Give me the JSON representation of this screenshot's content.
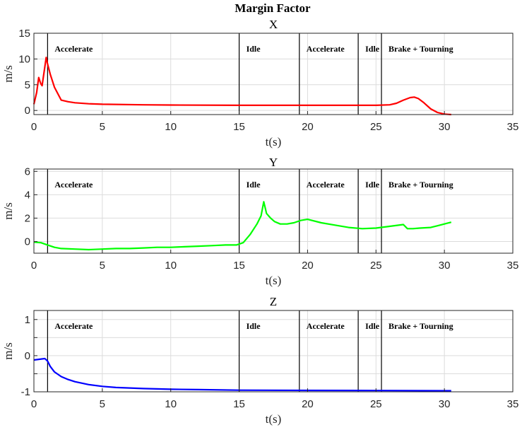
{
  "figure_title": "Margin Factor",
  "chart_data": [
    {
      "type": "line",
      "title": "X",
      "xlabel": "t(s)",
      "ylabel": "m/s",
      "xlim": [
        0,
        35
      ],
      "ylim": [
        -0.8,
        15
      ],
      "xticks": [
        0,
        5,
        10,
        15,
        20,
        25,
        30,
        35
      ],
      "yticks": [
        0,
        5,
        10,
        15
      ],
      "grid": true,
      "phase_boundaries": [
        1,
        15,
        19.4,
        23.7,
        25.4
      ],
      "phase_labels": [
        {
          "label": "Accelerate",
          "start": 1
        },
        {
          "label": "Idle",
          "start": 15
        },
        {
          "label": "Accelerate",
          "start": 19.4
        },
        {
          "label": "Idle",
          "start": 23.7
        },
        {
          "label": "Brake + Tourning",
          "start": 25.4
        }
      ],
      "series": [
        {
          "color": "#ff0000",
          "x": [
            0,
            0.2,
            0.35,
            0.5,
            0.6,
            0.8,
            0.9,
            1.0,
            1.2,
            1.5,
            2.0,
            2.5,
            3.0,
            4,
            5,
            8,
            10,
            15,
            20,
            25,
            26,
            26.5,
            27,
            27.5,
            27.8,
            28.1,
            28.5,
            29,
            29.5,
            30,
            30.5
          ],
          "y": [
            1.2,
            3.5,
            6.4,
            5.2,
            4.8,
            8.5,
            10.3,
            9.0,
            7.0,
            4.5,
            2.0,
            1.7,
            1.5,
            1.3,
            1.2,
            1.1,
            1.05,
            1.0,
            1.0,
            1.0,
            1.1,
            1.4,
            2.0,
            2.5,
            2.6,
            2.3,
            1.5,
            0.3,
            -0.4,
            -0.7,
            -0.8
          ]
        }
      ]
    },
    {
      "type": "line",
      "title": "Y",
      "xlabel": "t(s)",
      "ylabel": "m/s",
      "xlim": [
        0,
        35
      ],
      "ylim": [
        -1,
        6.2
      ],
      "xticks": [
        0,
        5,
        10,
        15,
        20,
        25,
        30,
        35
      ],
      "yticks": [
        0,
        2,
        4,
        6
      ],
      "grid": true,
      "phase_boundaries": [
        1,
        15,
        19.4,
        23.7,
        25.4
      ],
      "phase_labels": [
        {
          "label": "Accelerate",
          "start": 1
        },
        {
          "label": "Idle",
          "start": 15
        },
        {
          "label": "Accelerate",
          "start": 19.4
        },
        {
          "label": "Idle",
          "start": 23.7
        },
        {
          "label": "Brake + Tourning",
          "start": 25.4
        }
      ],
      "series": [
        {
          "color": "#00ff00",
          "x": [
            0,
            0.5,
            1.0,
            1.5,
            2,
            3,
            4,
            5,
            6,
            7,
            8,
            9,
            10,
            11,
            12,
            13,
            14,
            14.8,
            15.3,
            15.8,
            16.3,
            16.6,
            16.8,
            17.0,
            17.3,
            17.6,
            18.0,
            18.5,
            19,
            19.5,
            20,
            21,
            22,
            23,
            24,
            25,
            26,
            27,
            27.3,
            27.7,
            28.2,
            29,
            29.5,
            30,
            30.5
          ],
          "y": [
            -0.05,
            -0.1,
            -0.3,
            -0.5,
            -0.6,
            -0.65,
            -0.7,
            -0.65,
            -0.6,
            -0.6,
            -0.55,
            -0.5,
            -0.5,
            -0.45,
            -0.4,
            -0.35,
            -0.3,
            -0.3,
            -0.1,
            0.6,
            1.5,
            2.2,
            3.4,
            2.4,
            2.0,
            1.7,
            1.5,
            1.5,
            1.6,
            1.8,
            1.9,
            1.6,
            1.4,
            1.2,
            1.1,
            1.15,
            1.3,
            1.45,
            1.1,
            1.1,
            1.15,
            1.2,
            1.35,
            1.5,
            1.65
          ]
        }
      ]
    },
    {
      "type": "line",
      "title": "Z",
      "xlabel": "t(s)",
      "ylabel": "m/s",
      "xlim": [
        0,
        35
      ],
      "ylim": [
        -1,
        1.25
      ],
      "xticks": [
        0,
        5,
        10,
        15,
        20,
        25,
        30,
        35
      ],
      "yticks": [
        -1,
        -0.5,
        0,
        0.5,
        1
      ],
      "ytick_labels": [
        "-1",
        "",
        "0",
        "",
        "1"
      ],
      "grid": true,
      "phase_boundaries": [
        1,
        15,
        19.4,
        23.7,
        25.4
      ],
      "phase_labels": [
        {
          "label": "Accelerate",
          "start": 1
        },
        {
          "label": "Idle",
          "start": 15
        },
        {
          "label": "Accelerate",
          "start": 19.4
        },
        {
          "label": "Idle",
          "start": 23.7
        },
        {
          "label": "Brake + Tourning",
          "start": 25.4
        }
      ],
      "series": [
        {
          "color": "#0000ff",
          "x": [
            0,
            0.4,
            0.8,
            1.0,
            1.2,
            1.5,
            2,
            2.5,
            3,
            4,
            5,
            6,
            8,
            10,
            12,
            15,
            20,
            25,
            30,
            30.5
          ],
          "y": [
            -0.12,
            -0.1,
            -0.08,
            -0.15,
            -0.3,
            -0.45,
            -0.58,
            -0.66,
            -0.72,
            -0.8,
            -0.85,
            -0.88,
            -0.91,
            -0.93,
            -0.94,
            -0.955,
            -0.96,
            -0.965,
            -0.97,
            -0.97
          ]
        }
      ]
    }
  ]
}
